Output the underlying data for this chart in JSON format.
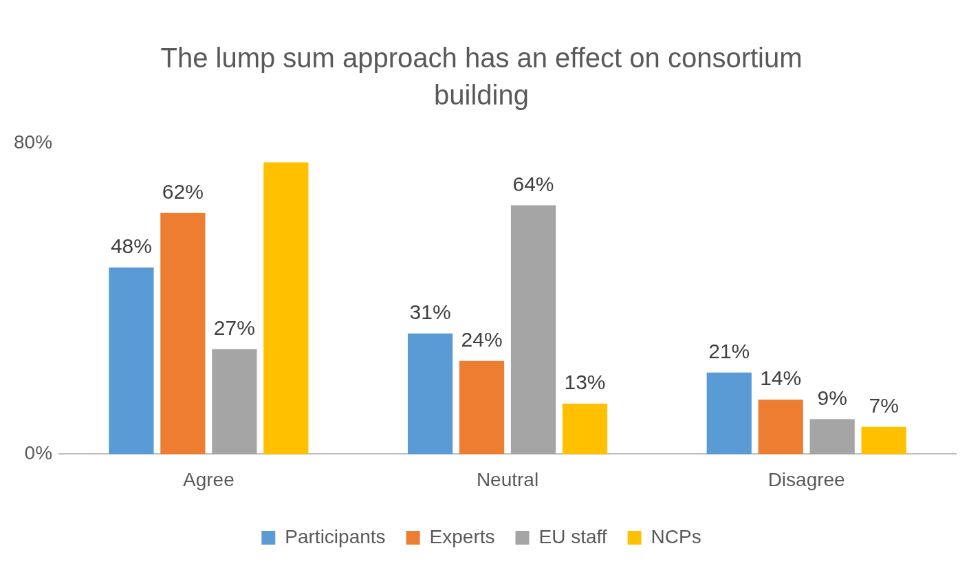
{
  "chart_data": {
    "type": "bar",
    "title": "The lump sum approach has an effect on consortium building",
    "categories": [
      "Agree",
      "Neutral",
      "Disagree"
    ],
    "series": [
      {
        "name": "Participants",
        "color": "#5b9bd5",
        "values": [
          48,
          31,
          21
        ],
        "value_labels": [
          "48%",
          "31%",
          "21%"
        ]
      },
      {
        "name": "Experts",
        "color": "#ed7d31",
        "values": [
          62,
          24,
          14
        ],
        "value_labels": [
          "62%",
          "24%",
          "14%"
        ]
      },
      {
        "name": "EU staff",
        "color": "#a5a5a5",
        "values": [
          27,
          64,
          9
        ],
        "value_labels": [
          "27%",
          "64%",
          "9%"
        ]
      },
      {
        "name": "NCPs",
        "color": "#ffc000",
        "values": [
          75,
          13,
          7
        ],
        "value_labels": [
          null,
          "13%",
          "7%"
        ]
      }
    ],
    "ylim": [
      0,
      80
    ],
    "yticks": [
      {
        "value": 0,
        "label": "0%"
      },
      {
        "value": 80,
        "label": "80%"
      }
    ],
    "grid": false,
    "legend": "bottom"
  }
}
